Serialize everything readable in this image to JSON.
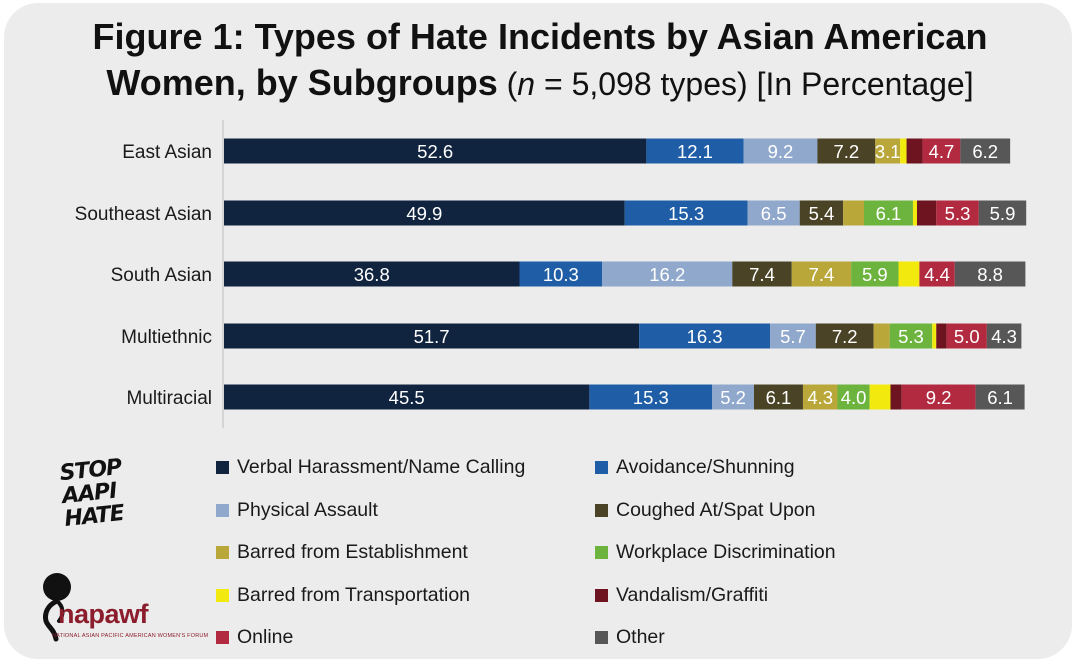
{
  "title": {
    "line1": "Figure 1: Types of Hate Incidents by Asian American",
    "line2_bold": "Women, by Subgroups",
    "line2_open": " (",
    "line2_n": "n",
    "line2_rest": " = 5,098 types) [In Percentage]"
  },
  "chart_data": {
    "type": "bar",
    "orientation": "horizontal",
    "stacked": true,
    "xlim": [
      0,
      100
    ],
    "categories": [
      "East Asian",
      "Southeast Asian",
      "South Asian",
      "Multiethnic",
      "Multiracial"
    ],
    "series": [
      {
        "name": "Verbal Harassment/Name Calling",
        "color": "#10233f",
        "values": [
          52.6,
          49.9,
          36.8,
          51.7,
          45.5
        ],
        "labels": [
          "52.6",
          "49.9",
          "36.8",
          "51.7",
          "45.5"
        ]
      },
      {
        "name": "Avoidance/Shunning",
        "color": "#1f5ea6",
        "values": [
          12.1,
          15.3,
          10.3,
          16.3,
          15.3
        ],
        "labels": [
          "12.1",
          "15.3",
          "10.3",
          "16.3",
          "15.3"
        ]
      },
      {
        "name": "Physical Assault",
        "color": "#8fa8cc",
        "values": [
          9.2,
          6.5,
          16.2,
          5.7,
          5.2
        ],
        "labels": [
          "9.2",
          "6.5",
          "16.2",
          "5.7",
          "5.2"
        ]
      },
      {
        "name": "Coughed At/Spat Upon",
        "color": "#4a4325",
        "values": [
          7.2,
          5.4,
          7.4,
          7.2,
          6.1
        ],
        "labels": [
          "7.2",
          "5.4",
          "7.4",
          "7.2",
          "6.1"
        ]
      },
      {
        "name": "Barred from Establishment",
        "color": "#b9a73a",
        "values": [
          3.1,
          2.6,
          7.4,
          2.0,
          4.3
        ],
        "labels": [
          "3.1",
          "",
          "7.4",
          "",
          "4.3"
        ]
      },
      {
        "name": "Workplace Discrimination",
        "color": "#6db43f",
        "values": [
          0.0,
          6.1,
          5.9,
          5.3,
          4.0
        ],
        "labels": [
          "",
          "6.1",
          "5.9",
          "5.3",
          "4.0"
        ]
      },
      {
        "name": "Barred from Transportation",
        "color": "#f2ea0f",
        "values": [
          0.8,
          0.5,
          2.6,
          0.5,
          2.6
        ],
        "labels": [
          "",
          "",
          "",
          "",
          ""
        ]
      },
      {
        "name": "Vandalism/Graffiti",
        "color": "#6e1420",
        "values": [
          2.0,
          2.4,
          0.0,
          1.3,
          1.4
        ],
        "labels": [
          "",
          "",
          "",
          "",
          ""
        ]
      },
      {
        "name": "Online",
        "color": "#b22a40",
        "values": [
          4.7,
          5.3,
          4.4,
          5.0,
          9.2
        ],
        "labels": [
          "4.7",
          "5.3",
          "4.4",
          "5.0",
          "9.2"
        ]
      },
      {
        "name": "Other",
        "color": "#575757",
        "values": [
          6.2,
          5.9,
          8.8,
          4.3,
          6.1
        ],
        "labels": [
          "6.2",
          "5.9",
          "8.8",
          "4.3",
          "6.1"
        ]
      }
    ]
  },
  "logos": {
    "stop_aapi_hate": [
      "STOP",
      "AAPI",
      "HATE"
    ],
    "napawf_word": "napawf",
    "napawf_sub": "NATIONAL ASIAN PACIFIC AMERICAN WOMEN'S FORUM"
  }
}
